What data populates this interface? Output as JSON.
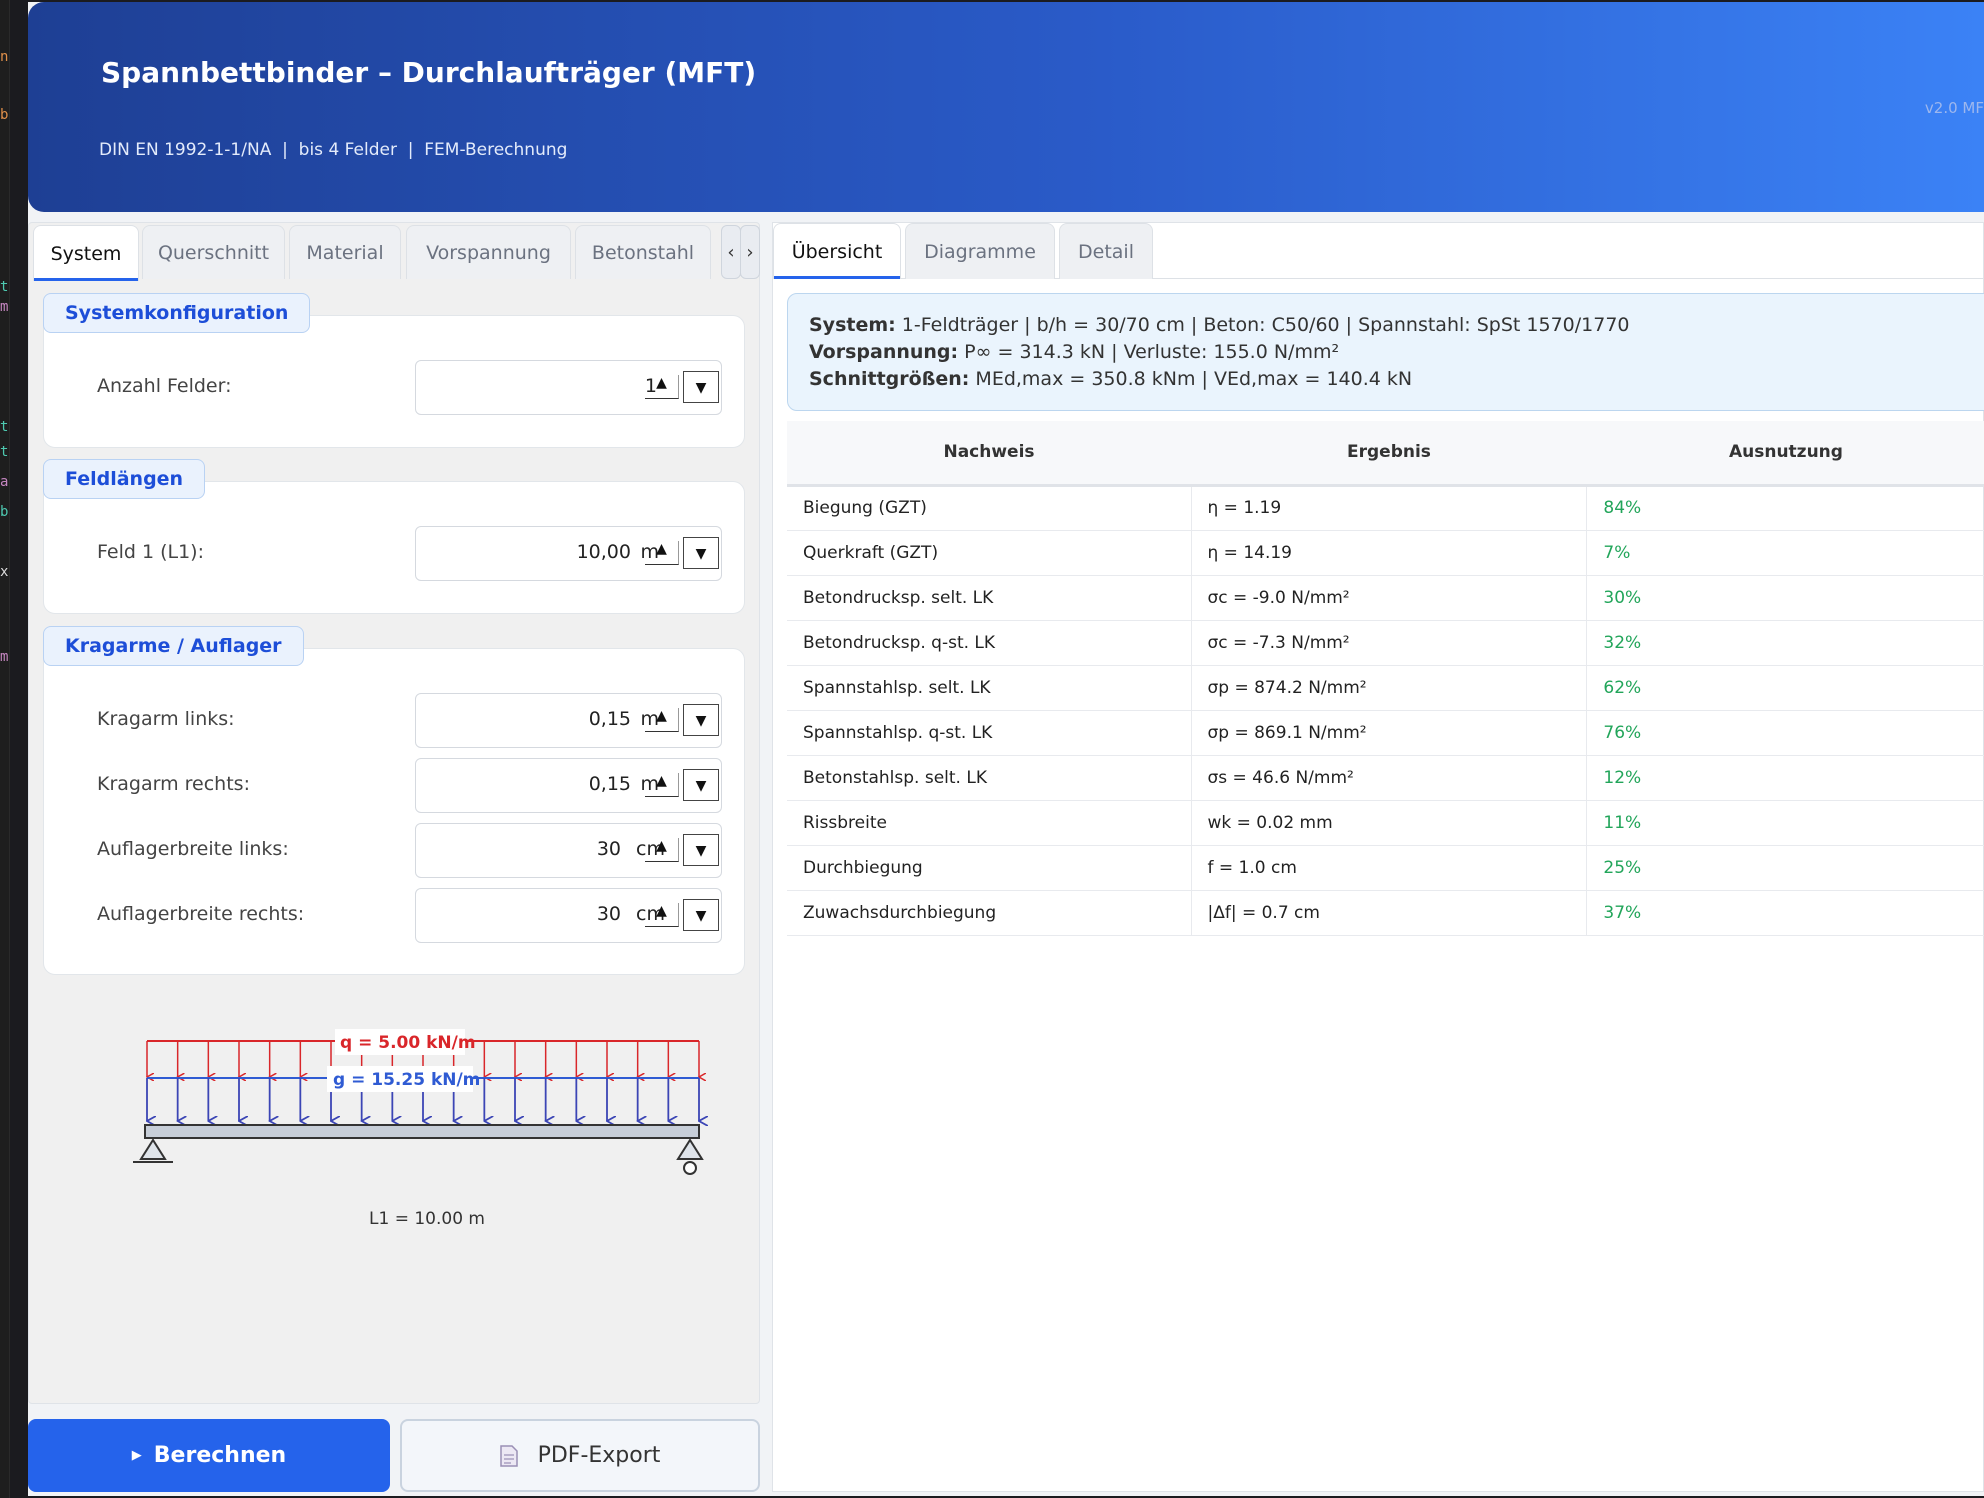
{
  "app": {
    "title": "Spannbettbinder – Durchlaufträger (MFT)",
    "subtitle": "DIN EN 1992-1-1/NA  |  bis 4 Felder  |  FEM-Berechnung",
    "version": "v2.0 MF"
  },
  "left_tabs": [
    "System",
    "Querschnitt",
    "Material",
    "Vorspannung",
    "Betonstahl"
  ],
  "tab_scroll": {
    "left": "‹",
    "right": "›"
  },
  "groups": {
    "system": {
      "title": "Systemkonfiguration",
      "fields": [
        {
          "label": "Anzahl Felder:",
          "value": "1",
          "unit": ""
        }
      ]
    },
    "lengths": {
      "title": "Feldlängen",
      "fields": [
        {
          "label": "Feld 1 (L1):",
          "value": "10,00",
          "unit": "m"
        }
      ]
    },
    "supports": {
      "title": "Kragarme / Auflager",
      "fields": [
        {
          "label": "Kragarm links:",
          "value": "0,15",
          "unit": "m"
        },
        {
          "label": "Kragarm rechts:",
          "value": "0,15",
          "unit": "m"
        },
        {
          "label": "Auflagerbreite links:",
          "value": "30",
          "unit": "cm"
        },
        {
          "label": "Auflagerbreite rechts:",
          "value": "30",
          "unit": "cm"
        }
      ]
    }
  },
  "diagram": {
    "q_label": "q = 5.00 kN/m",
    "g_label": "g = 15.25 kN/m",
    "span_label": "L1 = 10.00 m",
    "q_color": "#d9262a",
    "g_color": "#2f5bd3"
  },
  "buttons": {
    "calculate": "Berechnen",
    "calculate_icon": "play-icon",
    "pdf": "PDF-Export",
    "pdf_icon": "document-icon"
  },
  "right_tabs": [
    "Übersicht",
    "Diagramme",
    "Detail"
  ],
  "summary": {
    "system_label": "System:",
    "system_text": " 1-Feldträger | b/h = 30/70 cm | Beton: C50/60 | Spannstahl: SpSt 1570/1770",
    "prestress_label": "Vorspannung:",
    "prestress_text": " P∞ = 314.3 kN | Verluste: 155.0 N/mm²",
    "forces_label": "Schnittgrößen:",
    "forces_text": " MEd,max = 350.8 kNm | VEd,max = 140.4 kN"
  },
  "table": {
    "headers": [
      "Nachweis",
      "Ergebnis",
      "Ausnutzung"
    ],
    "rows": [
      [
        "Biegung (GZT)",
        "η = 1.19",
        "84%"
      ],
      [
        "Querkraft (GZT)",
        "η = 14.19",
        "7%"
      ],
      [
        "Betondrucksp. selt. LK",
        "σc = -9.0 N/mm²",
        "30%"
      ],
      [
        "Betondrucksp. q-st. LK",
        "σc = -7.3 N/mm²",
        "32%"
      ],
      [
        "Spannstahlsp. selt. LK",
        "σp = 874.2 N/mm²",
        "62%"
      ],
      [
        "Spannstahlsp. q-st. LK",
        "σp = 869.1 N/mm²",
        "76%"
      ],
      [
        "Betonstahlsp. selt. LK",
        "σs = 46.6 N/mm²",
        "12%"
      ],
      [
        "Rissbreite",
        "wk = 0.02 mm",
        "11%"
      ],
      [
        "Durchbiegung",
        "f = 1.0 cm",
        "25%"
      ],
      [
        "Zuwachsdurchbiegung",
        "|Δf| = 0.7 cm",
        "37%"
      ]
    ],
    "ok_color": "#22a55a"
  },
  "colors": {
    "accent": "#2563eb",
    "header_start": "#1e3f94",
    "header_end": "#3b82f6"
  }
}
